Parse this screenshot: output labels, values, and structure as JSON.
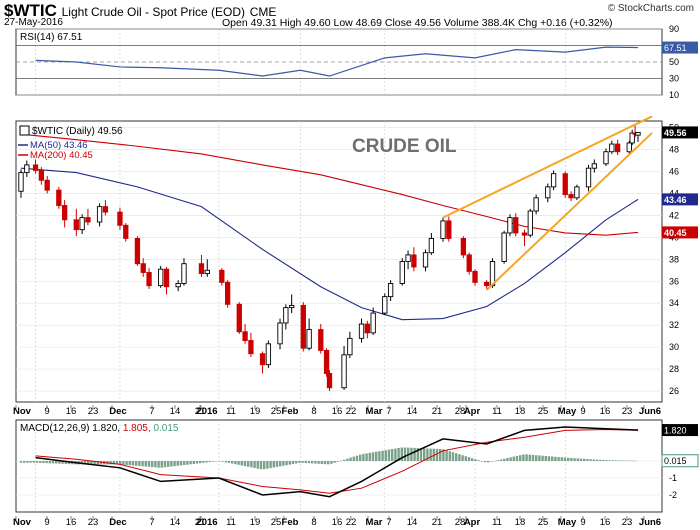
{
  "header": {
    "symbol": "$WTIC",
    "name": "Light Crude Oil - Spot Price (EOD)",
    "exchange": "CME",
    "title_line": "$WTIC Light Crude Oil - Spot Price (EOD) CME",
    "date": "27-May-2016",
    "ohlc_line": "Open 49.31   High 49.60   Low 48.69   Close 49.56   Volume 388.4K   Chg +0.16 (+0.32%)",
    "watermark": "© StockCharts.com",
    "open": 49.31,
    "high": 49.6,
    "low": 48.69,
    "close": 49.56,
    "volume": "388.4K",
    "change": "+0.16 (+0.32%)"
  },
  "panels": {
    "rsi": {
      "label": "RSI(14) 67.51",
      "value_tag": "67.51",
      "ticks": [
        "90",
        "70",
        "50",
        "30",
        "10"
      ]
    },
    "price": {
      "legend_main": "$WTIC (Daily) 49.56",
      "legend_ma50": "MA(50) 43.46",
      "legend_ma200": "MA(200) 40.45",
      "annotation": "CRUDE OIL",
      "tag_close": "49.56",
      "tag_ma50": "43.46",
      "tag_ma200": "40.45",
      "ticks": [
        "50",
        "48",
        "46",
        "44",
        "42",
        "40",
        "38",
        "36",
        "34",
        "32",
        "30",
        "28",
        "26"
      ]
    },
    "macd": {
      "label_prefix": "MACD(12,26,9)",
      "macd": "1.820",
      "signal": "1.805",
      "hist": "0.015",
      "tag_macd": "1.820",
      "tag_hist": "0.015",
      "ticks": [
        "0",
        "-1",
        "-2"
      ]
    }
  },
  "x_axis": {
    "labels": [
      "Nov",
      "9",
      "16",
      "23",
      "Dec",
      "7",
      "14",
      "21",
      "2016",
      "11",
      "19",
      "25",
      "Feb",
      "8",
      "16",
      "22",
      "Mar",
      "7",
      "14",
      "21",
      "28",
      "Apr",
      "11",
      "18",
      "25",
      "May",
      "9",
      "16",
      "23",
      "Jun6"
    ],
    "bold": [
      "Nov",
      "Dec",
      "2016",
      "Feb",
      "Mar",
      "Apr",
      "May",
      "Jun6"
    ]
  },
  "colors": {
    "up": "#000000",
    "down": "#cc0000",
    "ma50": "#1f2a8c",
    "ma200": "#cc0000",
    "rsi": "#3a5aa6",
    "macd": "#000000",
    "signal": "#cc0000",
    "hist": "#7aa08a",
    "wedge": "#f5a623",
    "annotation": "#6f6f6f"
  },
  "chart_data": [
    {
      "type": "line",
      "title": "RSI(14) 67.51",
      "x": [
        "Nov 2",
        "Nov 16",
        "Dec 1",
        "Dec 15",
        "Jan 4",
        "Jan 19",
        "Feb 1",
        "Feb 11",
        "Mar 1",
        "Mar 15",
        "Apr 1",
        "Apr 15",
        "May 2",
        "May 16",
        "May 27"
      ],
      "series": [
        {
          "name": "RSI(14)",
          "values": [
            52,
            50,
            44,
            43,
            40,
            33,
            40,
            33,
            55,
            60,
            55,
            65,
            62,
            68,
            67.51
          ]
        }
      ],
      "ylim": [
        10,
        90
      ]
    },
    {
      "type": "candlestick",
      "title": "$WTIC (Daily) 49.56",
      "candles": [
        {
          "d": "Oct 28",
          "o": 44.2,
          "h": 46.2,
          "l": 43.6,
          "c": 45.9
        },
        {
          "d": "Oct 30",
          "o": 45.9,
          "h": 47.0,
          "l": 45.5,
          "c": 46.6
        },
        {
          "d": "Nov 2",
          "o": 46.6,
          "h": 47.1,
          "l": 45.8,
          "c": 46.1
        },
        {
          "d": "Nov 4",
          "o": 46.1,
          "h": 46.4,
          "l": 44.8,
          "c": 45.2
        },
        {
          "d": "Nov 6",
          "o": 45.2,
          "h": 45.6,
          "l": 44.0,
          "c": 44.3
        },
        {
          "d": "Nov 10",
          "o": 44.3,
          "h": 44.6,
          "l": 42.6,
          "c": 42.9
        },
        {
          "d": "Nov 12",
          "o": 42.9,
          "h": 43.4,
          "l": 40.9,
          "c": 41.6
        },
        {
          "d": "Nov 16",
          "o": 41.6,
          "h": 42.6,
          "l": 40.1,
          "c": 40.7
        },
        {
          "d": "Nov 18",
          "o": 40.7,
          "h": 42.1,
          "l": 40.3,
          "c": 41.8
        },
        {
          "d": "Nov 20",
          "o": 41.8,
          "h": 42.6,
          "l": 41.1,
          "c": 41.4
        },
        {
          "d": "Nov 24",
          "o": 41.4,
          "h": 43.1,
          "l": 41.0,
          "c": 42.8
        },
        {
          "d": "Nov 26",
          "o": 42.8,
          "h": 43.4,
          "l": 42.0,
          "c": 42.3
        },
        {
          "d": "Dec 1",
          "o": 42.3,
          "h": 42.7,
          "l": 40.7,
          "c": 41.1
        },
        {
          "d": "Dec 3",
          "o": 41.1,
          "h": 41.3,
          "l": 39.6,
          "c": 39.9
        },
        {
          "d": "Dec 7",
          "o": 39.9,
          "h": 40.1,
          "l": 37.4,
          "c": 37.6
        },
        {
          "d": "Dec 9",
          "o": 37.6,
          "h": 38.1,
          "l": 36.4,
          "c": 36.8
        },
        {
          "d": "Dec 11",
          "o": 36.8,
          "h": 37.2,
          "l": 35.3,
          "c": 35.6
        },
        {
          "d": "Dec 15",
          "o": 35.6,
          "h": 37.4,
          "l": 35.4,
          "c": 37.1
        },
        {
          "d": "Dec 17",
          "o": 37.1,
          "h": 37.3,
          "l": 34.8,
          "c": 35.5
        },
        {
          "d": "Dec 21",
          "o": 35.5,
          "h": 36.1,
          "l": 35.1,
          "c": 35.8
        },
        {
          "d": "Dec 23",
          "o": 35.8,
          "h": 38.1,
          "l": 35.6,
          "c": 37.6
        },
        {
          "d": "Dec 29",
          "o": 37.6,
          "h": 38.4,
          "l": 36.4,
          "c": 36.7
        },
        {
          "d": "Dec 31",
          "o": 36.7,
          "h": 38.0,
          "l": 36.4,
          "c": 37.0
        },
        {
          "d": "Jan 5",
          "o": 37.0,
          "h": 37.2,
          "l": 35.6,
          "c": 35.9
        },
        {
          "d": "Jan 7",
          "o": 35.9,
          "h": 36.1,
          "l": 33.6,
          "c": 33.9
        },
        {
          "d": "Jan 11",
          "o": 33.9,
          "h": 34.1,
          "l": 31.2,
          "c": 31.4
        },
        {
          "d": "Jan 13",
          "o": 31.4,
          "h": 32.1,
          "l": 30.3,
          "c": 30.6
        },
        {
          "d": "Jan 15",
          "o": 30.6,
          "h": 31.3,
          "l": 29.1,
          "c": 29.4
        },
        {
          "d": "Jan 19",
          "o": 29.4,
          "h": 29.6,
          "l": 27.6,
          "c": 28.4
        },
        {
          "d": "Jan 21",
          "o": 28.4,
          "h": 30.6,
          "l": 28.1,
          "c": 30.3
        },
        {
          "d": "Jan 25",
          "o": 30.3,
          "h": 32.6,
          "l": 29.8,
          "c": 32.2
        },
        {
          "d": "Jan 27",
          "o": 32.2,
          "h": 33.9,
          "l": 31.6,
          "c": 33.6
        },
        {
          "d": "Jan 29",
          "o": 33.6,
          "h": 34.8,
          "l": 33.1,
          "c": 33.8
        },
        {
          "d": "Feb 2",
          "o": 33.8,
          "h": 34.1,
          "l": 29.6,
          "c": 29.9
        },
        {
          "d": "Feb 4",
          "o": 29.9,
          "h": 32.6,
          "l": 29.7,
          "c": 31.6
        },
        {
          "d": "Feb 8",
          "o": 31.6,
          "h": 32.1,
          "l": 29.4,
          "c": 29.7
        },
        {
          "d": "Feb 10",
          "o": 29.7,
          "h": 29.9,
          "l": 27.3,
          "c": 27.6
        },
        {
          "d": "Feb 11",
          "o": 27.6,
          "h": 27.9,
          "l": 26.0,
          "c": 26.3
        },
        {
          "d": "Feb 16",
          "o": 26.3,
          "h": 30.1,
          "l": 26.1,
          "c": 29.3
        },
        {
          "d": "Feb 18",
          "o": 29.3,
          "h": 31.4,
          "l": 29.0,
          "c": 30.8
        },
        {
          "d": "Feb 22",
          "o": 30.8,
          "h": 32.6,
          "l": 30.4,
          "c": 32.1
        },
        {
          "d": "Feb 24",
          "o": 32.1,
          "h": 32.4,
          "l": 30.8,
          "c": 31.3
        },
        {
          "d": "Feb 26",
          "o": 31.3,
          "h": 33.6,
          "l": 31.1,
          "c": 33.1
        },
        {
          "d": "Mar 1",
          "o": 33.1,
          "h": 34.9,
          "l": 32.9,
          "c": 34.6
        },
        {
          "d": "Mar 3",
          "o": 34.6,
          "h": 36.1,
          "l": 34.2,
          "c": 35.8
        },
        {
          "d": "Mar 7",
          "o": 35.8,
          "h": 38.1,
          "l": 35.6,
          "c": 37.8
        },
        {
          "d": "Mar 9",
          "o": 37.8,
          "h": 38.8,
          "l": 37.1,
          "c": 38.4
        },
        {
          "d": "Mar 11",
          "o": 38.4,
          "h": 39.1,
          "l": 36.9,
          "c": 37.3
        },
        {
          "d": "Mar 15",
          "o": 37.3,
          "h": 38.9,
          "l": 36.9,
          "c": 38.6
        },
        {
          "d": "Mar 17",
          "o": 38.6,
          "h": 40.4,
          "l": 38.4,
          "c": 39.9
        },
        {
          "d": "Mar 21",
          "o": 39.9,
          "h": 41.8,
          "l": 39.6,
          "c": 41.5
        },
        {
          "d": "Mar 23",
          "o": 41.5,
          "h": 41.9,
          "l": 39.6,
          "c": 39.9
        },
        {
          "d": "Mar 28",
          "o": 39.9,
          "h": 40.1,
          "l": 38.1,
          "c": 38.4
        },
        {
          "d": "Mar 30",
          "o": 38.4,
          "h": 38.6,
          "l": 36.6,
          "c": 36.9
        },
        {
          "d": "Apr 1",
          "o": 36.9,
          "h": 37.1,
          "l": 35.6,
          "c": 35.9
        },
        {
          "d": "Apr 5",
          "o": 35.9,
          "h": 36.1,
          "l": 35.3,
          "c": 35.6
        },
        {
          "d": "Apr 7",
          "o": 35.6,
          "h": 38.1,
          "l": 35.4,
          "c": 37.8
        },
        {
          "d": "Apr 11",
          "o": 37.8,
          "h": 40.6,
          "l": 37.6,
          "c": 40.4
        },
        {
          "d": "Apr 13",
          "o": 40.4,
          "h": 42.1,
          "l": 40.1,
          "c": 41.8
        },
        {
          "d": "Apr 15",
          "o": 41.8,
          "h": 42.2,
          "l": 40.1,
          "c": 40.4
        },
        {
          "d": "Apr 18",
          "o": 40.4,
          "h": 40.7,
          "l": 39.2,
          "c": 40.2
        },
        {
          "d": "Apr 20",
          "o": 40.2,
          "h": 42.6,
          "l": 40.0,
          "c": 42.4
        },
        {
          "d": "Apr 22",
          "o": 42.4,
          "h": 43.9,
          "l": 42.1,
          "c": 43.6
        },
        {
          "d": "Apr 26",
          "o": 43.6,
          "h": 44.9,
          "l": 43.2,
          "c": 44.6
        },
        {
          "d": "Apr 28",
          "o": 44.6,
          "h": 46.1,
          "l": 44.3,
          "c": 45.8
        },
        {
          "d": "May 2",
          "o": 45.8,
          "h": 46.0,
          "l": 43.6,
          "c": 43.9
        },
        {
          "d": "May 4",
          "o": 43.9,
          "h": 44.2,
          "l": 43.3,
          "c": 43.6
        },
        {
          "d": "May 6",
          "o": 43.6,
          "h": 44.8,
          "l": 43.4,
          "c": 44.6
        },
        {
          "d": "May 10",
          "o": 44.6,
          "h": 46.6,
          "l": 44.2,
          "c": 46.3
        },
        {
          "d": "May 12",
          "o": 46.3,
          "h": 47.1,
          "l": 45.9,
          "c": 46.7
        },
        {
          "d": "May 16",
          "o": 46.7,
          "h": 48.1,
          "l": 46.5,
          "c": 47.8
        },
        {
          "d": "May 18",
          "o": 47.8,
          "h": 48.8,
          "l": 47.6,
          "c": 48.5
        },
        {
          "d": "May 20",
          "o": 48.5,
          "h": 48.9,
          "l": 47.5,
          "c": 47.8
        },
        {
          "d": "May 24",
          "o": 47.8,
          "h": 48.8,
          "l": 47.6,
          "c": 48.6
        },
        {
          "d": "May 25",
          "o": 48.6,
          "h": 49.8,
          "l": 48.4,
          "c": 49.5
        },
        {
          "d": "May 26",
          "o": 49.5,
          "h": 50.2,
          "l": 49.1,
          "c": 49.4
        },
        {
          "d": "May 27",
          "o": 49.31,
          "h": 49.6,
          "l": 48.69,
          "c": 49.56
        }
      ],
      "series": [
        {
          "name": "MA(50)",
          "x": [
            "Oct 28",
            "Nov 16",
            "Dec 7",
            "Dec 29",
            "Jan 19",
            "Feb 8",
            "Feb 22",
            "Mar 7",
            "Mar 21",
            "Apr 5",
            "Apr 18",
            "May 2",
            "May 16",
            "May 27"
          ],
          "values": [
            46.3,
            45.9,
            44.6,
            42.8,
            38.9,
            35.5,
            33.6,
            32.5,
            32.6,
            33.7,
            35.8,
            38.6,
            41.6,
            43.46
          ]
        },
        {
          "name": "MA(200)",
          "x": [
            "Oct 28",
            "Nov 16",
            "Dec 7",
            "Dec 29",
            "Jan 19",
            "Feb 8",
            "Feb 22",
            "Mar 7",
            "Mar 21",
            "Apr 5",
            "Apr 18",
            "May 2",
            "May 16",
            "May 27"
          ],
          "values": [
            49.4,
            48.9,
            48.3,
            47.6,
            46.6,
            45.7,
            44.8,
            43.9,
            42.9,
            41.9,
            41.0,
            40.4,
            40.2,
            40.45
          ]
        }
      ],
      "ylim": [
        26,
        50
      ],
      "annotations": [
        "CRUDE OIL"
      ]
    },
    {
      "type": "line",
      "title": "MACD(12,26,9) 1.820, 1.805, 0.015",
      "x": [
        "Nov 2",
        "Nov 16",
        "Dec 1",
        "Dec 15",
        "Jan 4",
        "Jan 19",
        "Feb 1",
        "Feb 11",
        "Feb 22",
        "Mar 7",
        "Mar 21",
        "Apr 5",
        "Apr 18",
        "May 2",
        "May 16",
        "May 27"
      ],
      "series": [
        {
          "name": "MACD",
          "values": [
            0.2,
            -0.1,
            -0.4,
            -1.2,
            -1.0,
            -2.0,
            -1.8,
            -2.1,
            -1.2,
            0.2,
            1.3,
            1.0,
            1.8,
            2.0,
            1.9,
            1.82
          ]
        },
        {
          "name": "Signal",
          "values": [
            0.3,
            0.1,
            -0.2,
            -0.8,
            -1.0,
            -1.5,
            -1.7,
            -1.9,
            -1.6,
            -0.6,
            0.6,
            1.1,
            1.4,
            1.8,
            1.85,
            1.805
          ]
        }
      ],
      "ylim": [
        -2.5,
        2.5
      ]
    }
  ]
}
